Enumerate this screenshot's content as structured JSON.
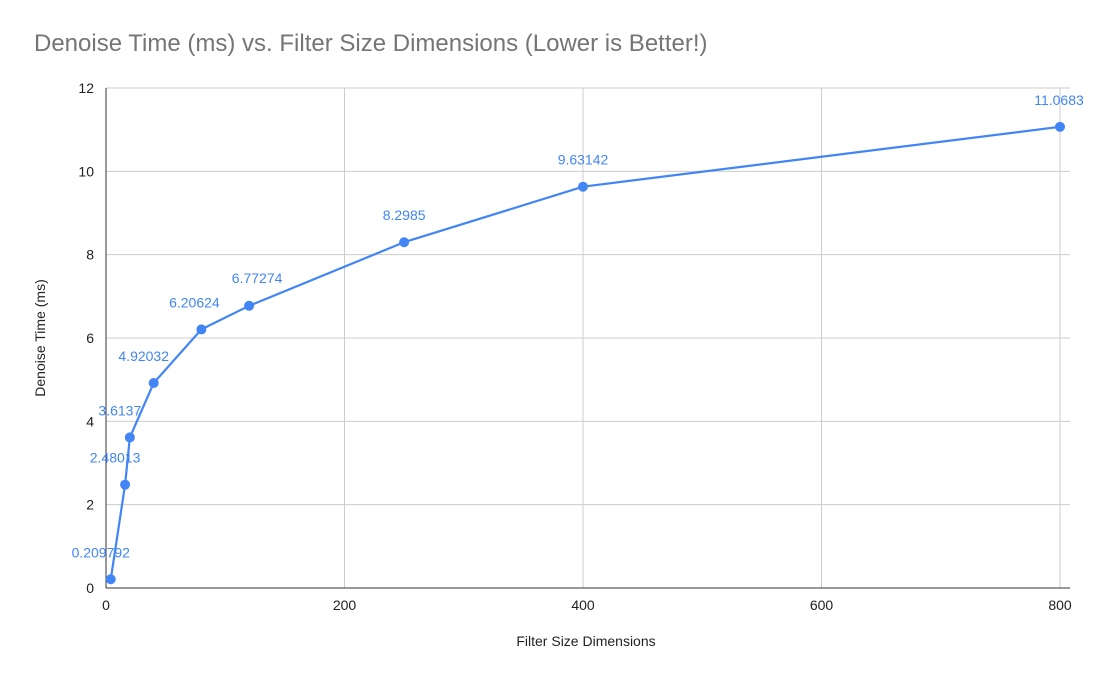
{
  "chart_data": {
    "type": "line",
    "title": "Denoise Time (ms) vs. Filter Size Dimensions (Lower is Better!)",
    "xlabel": "Filter Size Dimensions",
    "ylabel": "Denoise Time (ms)",
    "xlim": [
      0,
      800
    ],
    "ylim": [
      0,
      12
    ],
    "x_ticks": [
      0,
      200,
      400,
      600,
      800
    ],
    "y_ticks": [
      0,
      2,
      4,
      6,
      8,
      10,
      12
    ],
    "grid": true,
    "legend": "none",
    "series": [
      {
        "color": "#4285f4",
        "points": [
          {
            "x": 4,
            "y": 0.209792,
            "label": "0.209792"
          },
          {
            "x": 16,
            "y": 2.48013,
            "label": "2.48013"
          },
          {
            "x": 20,
            "y": 3.6137,
            "label": "3.6137"
          },
          {
            "x": 40,
            "y": 4.92032,
            "label": "4.92032"
          },
          {
            "x": 80,
            "y": 6.20624,
            "label": "6.20624"
          },
          {
            "x": 120,
            "y": 6.77274,
            "label": "6.77274"
          },
          {
            "x": 250,
            "y": 8.2985,
            "label": "8.2985"
          },
          {
            "x": 400,
            "y": 9.63142,
            "label": "9.63142"
          },
          {
            "x": 800,
            "y": 11.0683,
            "label": "11.0683"
          }
        ]
      }
    ]
  }
}
